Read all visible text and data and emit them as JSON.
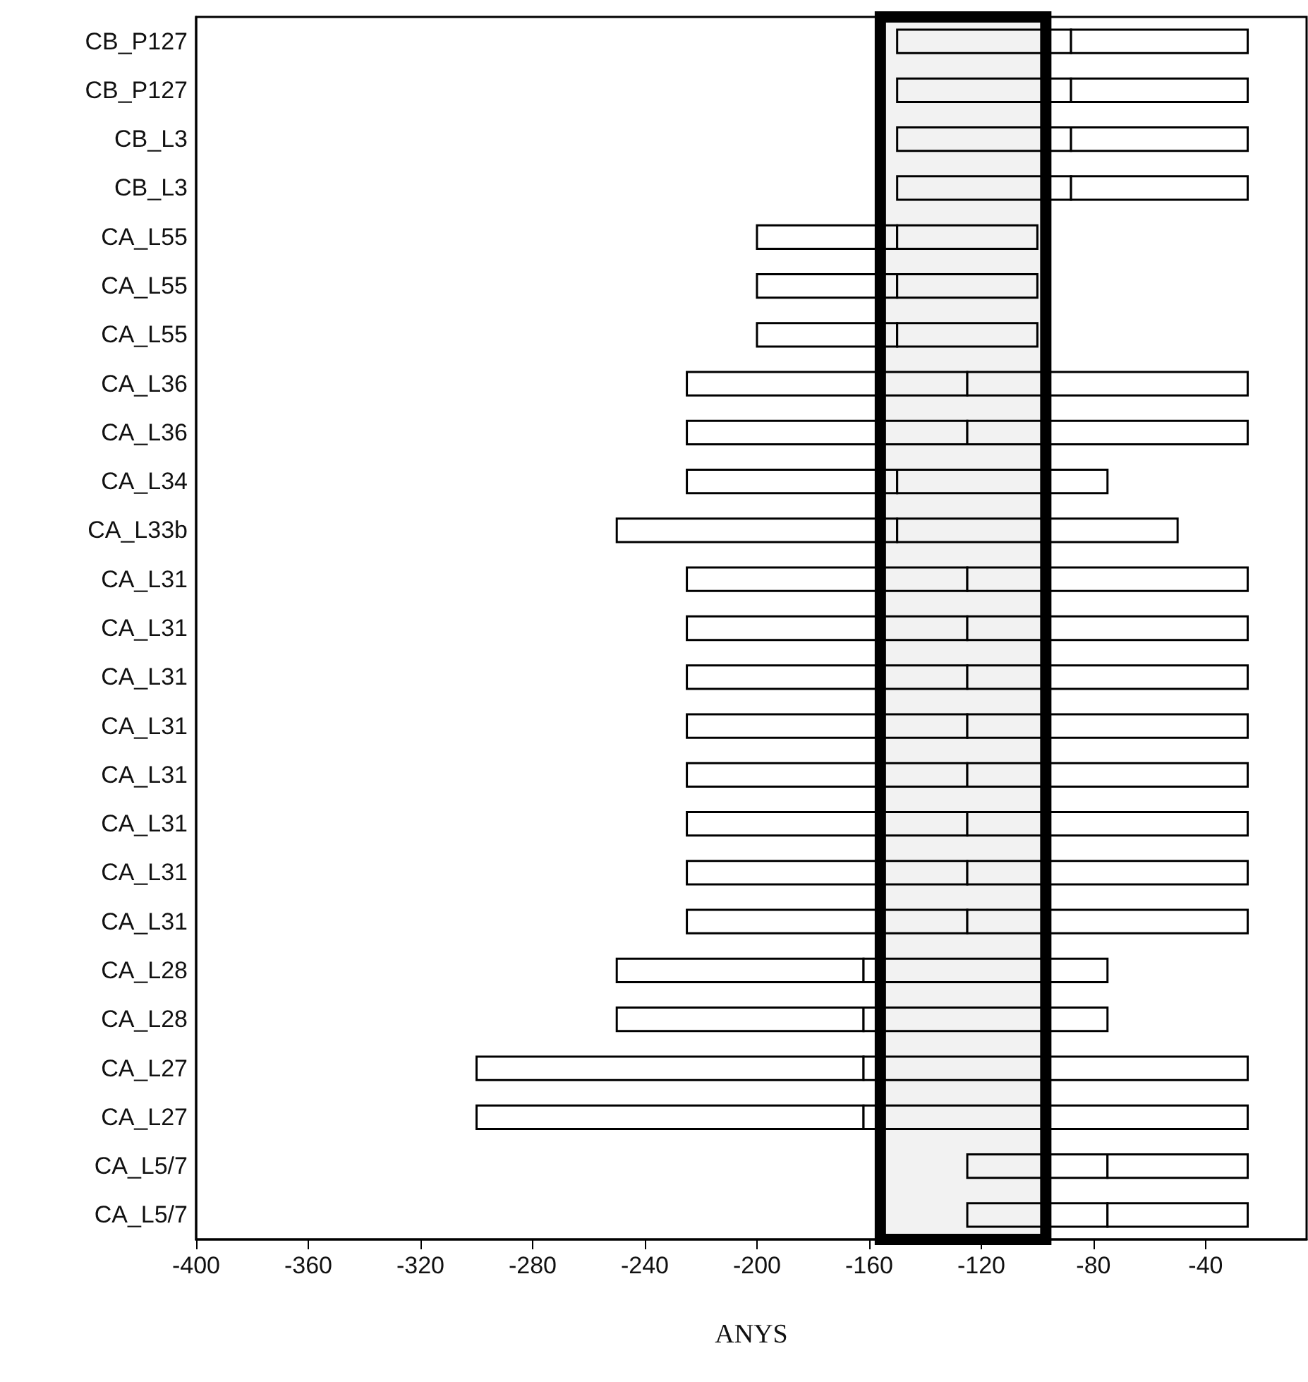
{
  "chart_data": {
    "type": "bar",
    "orientation": "horizontal",
    "xlabel": "ANYS",
    "categories": [
      "CB_P127",
      "CB_P127",
      "CB_L3",
      "CB_L3",
      "CA_L55",
      "CA_L55",
      "CA_L55",
      "CA_L36",
      "CA_L36",
      "CA_L34",
      "CA_L33b",
      "CA_L31",
      "CA_L31",
      "CA_L31",
      "CA_L31",
      "CA_L31",
      "CA_L31",
      "CA_L31",
      "CA_L31",
      "CA_L28",
      "CA_L28",
      "CA_L27",
      "CA_L27",
      "CA_L5/7",
      "CA_L5/7"
    ],
    "series": [
      {
        "color": "#ffffff",
        "base": [
          -150,
          -150,
          -150,
          -150,
          -200,
          -200,
          -200,
          -225,
          -225,
          -225,
          -250,
          -225,
          -225,
          -225,
          -225,
          -225,
          -225,
          -225,
          -225,
          -250,
          -250,
          -300,
          -300,
          -125,
          -125
        ],
        "values": [
          62,
          62,
          62,
          62,
          50,
          50,
          50,
          100,
          100,
          75,
          100,
          100,
          100,
          100,
          100,
          100,
          100,
          100,
          100,
          88,
          88,
          138,
          138,
          50,
          50
        ]
      },
      {
        "color": "#ffffff",
        "base": [
          -88,
          -88,
          -88,
          -88,
          -150,
          -150,
          -150,
          -125,
          -125,
          -150,
          -150,
          -125,
          -125,
          -125,
          -125,
          -125,
          -125,
          -125,
          -125,
          -162,
          -162,
          -162,
          -162,
          -75,
          -75
        ],
        "values": [
          63,
          63,
          63,
          63,
          50,
          50,
          50,
          100,
          100,
          75,
          100,
          100,
          100,
          100,
          100,
          100,
          100,
          100,
          100,
          87,
          87,
          137,
          137,
          50,
          50
        ]
      }
    ],
    "xlim": [
      -400,
      -4
    ],
    "xticks": [
      -400,
      -360,
      -320,
      -280,
      -240,
      -200,
      -160,
      -120,
      -80,
      -40
    ],
    "bands": [
      {
        "axis": "x",
        "from": -156,
        "to": -97,
        "color": "#000000"
      }
    ],
    "grid": false
  }
}
